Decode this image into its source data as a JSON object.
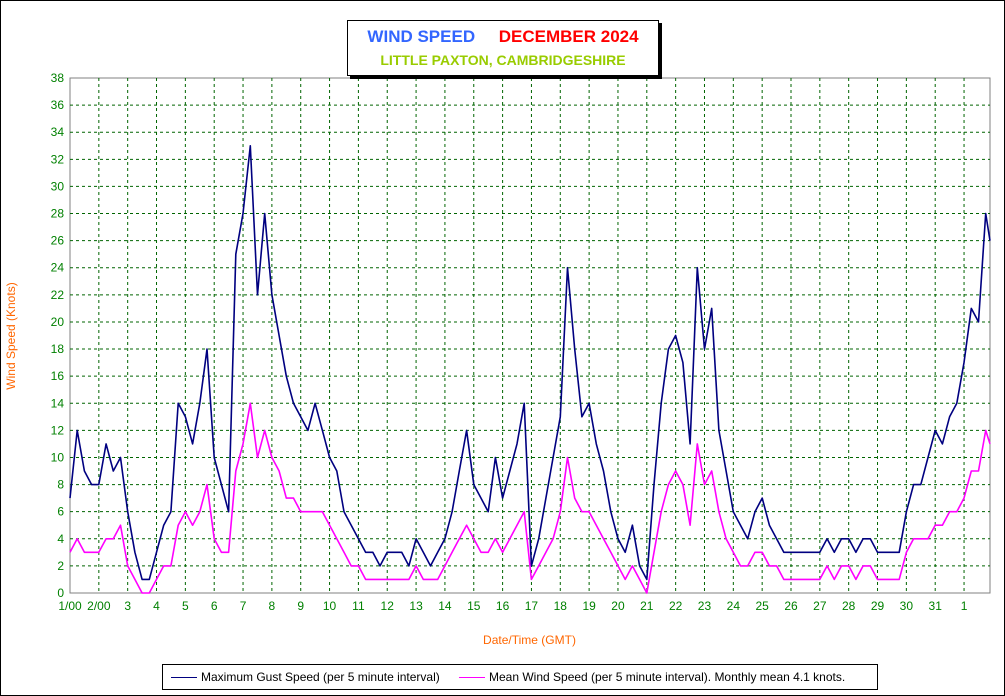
{
  "title": {
    "part1": "WIND SPEED",
    "part2": "DECEMBER 2024",
    "subtitle": "LITTLE PAXTON, CAMBRIDGESHIRE"
  },
  "colors": {
    "title1": "#3366ff",
    "title2": "#ff0000",
    "subtitle": "#99cc00",
    "axis_label": "#ff6600",
    "tick_label": "#008000",
    "grid": "#006400",
    "gust": "#000080",
    "mean": "#ff00ff"
  },
  "legend": {
    "gust_label": "Maximum Gust Speed (per 5 minute interval)",
    "mean_label": "Mean Wind Speed (per 5 minute interval). Monthly mean 4.1 knots."
  },
  "chart_data": {
    "type": "line",
    "title": "WIND SPEED DECEMBER 2024",
    "subtitle": "LITTLE PAXTON, CAMBRIDGESHIRE",
    "xlabel": "Date/Time (GMT)",
    "ylabel": "Wind Speed (Knots)",
    "ylim": [
      0,
      38
    ],
    "yticks": [
      0,
      2,
      4,
      6,
      8,
      10,
      12,
      14,
      16,
      18,
      20,
      22,
      24,
      26,
      28,
      30,
      32,
      34,
      36,
      38
    ],
    "xlim": [
      1,
      32.9
    ],
    "xticks": [
      {
        "x": 1,
        "label": "1/00"
      },
      {
        "x": 2,
        "label": "2/00"
      },
      {
        "x": 3,
        "label": "3"
      },
      {
        "x": 4,
        "label": "4"
      },
      {
        "x": 5,
        "label": "5"
      },
      {
        "x": 6,
        "label": "6"
      },
      {
        "x": 7,
        "label": "7"
      },
      {
        "x": 8,
        "label": "8"
      },
      {
        "x": 9,
        "label": "9"
      },
      {
        "x": 10,
        "label": "10"
      },
      {
        "x": 11,
        "label": "11"
      },
      {
        "x": 12,
        "label": "12"
      },
      {
        "x": 13,
        "label": "13"
      },
      {
        "x": 14,
        "label": "14"
      },
      {
        "x": 15,
        "label": "15"
      },
      {
        "x": 16,
        "label": "16"
      },
      {
        "x": 17,
        "label": "17"
      },
      {
        "x": 18,
        "label": "18"
      },
      {
        "x": 19,
        "label": "19"
      },
      {
        "x": 20,
        "label": "20"
      },
      {
        "x": 21,
        "label": "21"
      },
      {
        "x": 22,
        "label": "22"
      },
      {
        "x": 23,
        "label": "23"
      },
      {
        "x": 24,
        "label": "24"
      },
      {
        "x": 25,
        "label": "25"
      },
      {
        "x": 26,
        "label": "26"
      },
      {
        "x": 27,
        "label": "27"
      },
      {
        "x": 28,
        "label": "28"
      },
      {
        "x": 29,
        "label": "29"
      },
      {
        "x": 30,
        "label": "30"
      },
      {
        "x": 31,
        "label": "31"
      },
      {
        "x": 32,
        "label": "1"
      }
    ],
    "grid": true,
    "legend_position": "bottom",
    "series": [
      {
        "name": "Maximum Gust Speed (per 5 minute interval)",
        "color": "#000080",
        "x": [
          1.0,
          1.25,
          1.5,
          1.75,
          2.0,
          2.25,
          2.5,
          2.75,
          3.0,
          3.25,
          3.5,
          3.75,
          4.0,
          4.25,
          4.5,
          4.75,
          5.0,
          5.25,
          5.5,
          5.75,
          6.0,
          6.25,
          6.5,
          6.75,
          7.0,
          7.25,
          7.5,
          7.75,
          8.0,
          8.25,
          8.5,
          8.75,
          9.0,
          9.25,
          9.5,
          9.75,
          10.0,
          10.25,
          10.5,
          10.75,
          11.0,
          11.25,
          11.5,
          11.75,
          12.0,
          12.25,
          12.5,
          12.75,
          13.0,
          13.25,
          13.5,
          13.75,
          14.0,
          14.25,
          14.5,
          14.75,
          15.0,
          15.25,
          15.5,
          15.75,
          16.0,
          16.25,
          16.5,
          16.75,
          17.0,
          17.25,
          17.5,
          17.75,
          18.0,
          18.25,
          18.5,
          18.75,
          19.0,
          19.25,
          19.5,
          19.75,
          20.0,
          20.25,
          20.5,
          20.75,
          21.0,
          21.25,
          21.5,
          21.75,
          22.0,
          22.25,
          22.5,
          22.75,
          23.0,
          23.25,
          23.5,
          23.75,
          24.0,
          24.25,
          24.5,
          24.75,
          25.0,
          25.25,
          25.5,
          25.75,
          26.0,
          26.25,
          26.5,
          26.75,
          27.0,
          27.25,
          27.5,
          27.75,
          28.0,
          28.25,
          28.5,
          28.75,
          29.0,
          29.25,
          29.5,
          29.75,
          30.0,
          30.25,
          30.5,
          30.75,
          31.0,
          31.25,
          31.5,
          31.75,
          32.0,
          32.25,
          32.5,
          32.75,
          32.9
        ],
        "values": [
          7,
          12,
          9,
          8,
          8,
          11,
          9,
          10,
          6,
          3,
          1,
          1,
          3,
          5,
          6,
          14,
          13,
          11,
          14,
          18,
          10,
          8,
          6,
          25,
          28,
          33,
          22,
          28,
          22,
          19,
          16,
          14,
          13,
          12,
          14,
          12,
          10,
          9,
          6,
          5,
          4,
          3,
          3,
          2,
          3,
          3,
          3,
          2,
          4,
          3,
          2,
          3,
          4,
          6,
          9,
          12,
          8,
          7,
          6,
          10,
          7,
          9,
          11,
          14,
          2,
          4,
          7,
          10,
          13,
          24,
          18,
          13,
          14,
          11,
          9,
          6,
          4,
          3,
          5,
          2,
          1,
          8,
          14,
          18,
          19,
          17,
          11,
          24,
          18,
          21,
          12,
          9,
          6,
          5,
          4,
          6,
          7,
          5,
          4,
          3,
          3,
          3,
          3,
          3,
          3,
          4,
          3,
          4,
          4,
          3,
          4,
          4,
          3,
          3,
          3,
          3,
          6,
          8,
          8,
          10,
          12,
          11,
          13,
          14,
          17,
          21,
          20,
          28,
          26
        ]
      },
      {
        "name": "Mean Wind Speed (per 5 minute interval). Monthly mean 4.1 knots.",
        "color": "#ff00ff",
        "x": [
          1.0,
          1.25,
          1.5,
          1.75,
          2.0,
          2.25,
          2.5,
          2.75,
          3.0,
          3.25,
          3.5,
          3.75,
          4.0,
          4.25,
          4.5,
          4.75,
          5.0,
          5.25,
          5.5,
          5.75,
          6.0,
          6.25,
          6.5,
          6.75,
          7.0,
          7.25,
          7.5,
          7.75,
          8.0,
          8.25,
          8.5,
          8.75,
          9.0,
          9.25,
          9.5,
          9.75,
          10.0,
          10.25,
          10.5,
          10.75,
          11.0,
          11.25,
          11.5,
          11.75,
          12.0,
          12.25,
          12.5,
          12.75,
          13.0,
          13.25,
          13.5,
          13.75,
          14.0,
          14.25,
          14.5,
          14.75,
          15.0,
          15.25,
          15.5,
          15.75,
          16.0,
          16.25,
          16.5,
          16.75,
          17.0,
          17.25,
          17.5,
          17.75,
          18.0,
          18.25,
          18.5,
          18.75,
          19.0,
          19.25,
          19.5,
          19.75,
          20.0,
          20.25,
          20.5,
          20.75,
          21.0,
          21.25,
          21.5,
          21.75,
          22.0,
          22.25,
          22.5,
          22.75,
          23.0,
          23.25,
          23.5,
          23.75,
          24.0,
          24.25,
          24.5,
          24.75,
          25.0,
          25.25,
          25.5,
          25.75,
          26.0,
          26.25,
          26.5,
          26.75,
          27.0,
          27.25,
          27.5,
          27.75,
          28.0,
          28.25,
          28.5,
          28.75,
          29.0,
          29.25,
          29.5,
          29.75,
          30.0,
          30.25,
          30.5,
          30.75,
          31.0,
          31.25,
          31.5,
          31.75,
          32.0,
          32.25,
          32.5,
          32.75,
          32.9
        ],
        "values": [
          3,
          4,
          3,
          3,
          3,
          4,
          4,
          5,
          2,
          1,
          0,
          0,
          1,
          2,
          2,
          5,
          6,
          5,
          6,
          8,
          4,
          3,
          3,
          9,
          11,
          14,
          10,
          12,
          10,
          9,
          7,
          7,
          6,
          6,
          6,
          6,
          5,
          4,
          3,
          2,
          2,
          1,
          1,
          1,
          1,
          1,
          1,
          1,
          2,
          1,
          1,
          1,
          2,
          3,
          4,
          5,
          4,
          3,
          3,
          4,
          3,
          4,
          5,
          6,
          1,
          2,
          3,
          4,
          6,
          10,
          7,
          6,
          6,
          5,
          4,
          3,
          2,
          1,
          2,
          1,
          0,
          3,
          6,
          8,
          9,
          8,
          5,
          11,
          8,
          9,
          6,
          4,
          3,
          2,
          2,
          3,
          3,
          2,
          2,
          1,
          1,
          1,
          1,
          1,
          1,
          2,
          1,
          2,
          2,
          1,
          2,
          2,
          1,
          1,
          1,
          1,
          3,
          4,
          4,
          4,
          5,
          5,
          6,
          6,
          7,
          9,
          9,
          12,
          11
        ]
      }
    ]
  }
}
